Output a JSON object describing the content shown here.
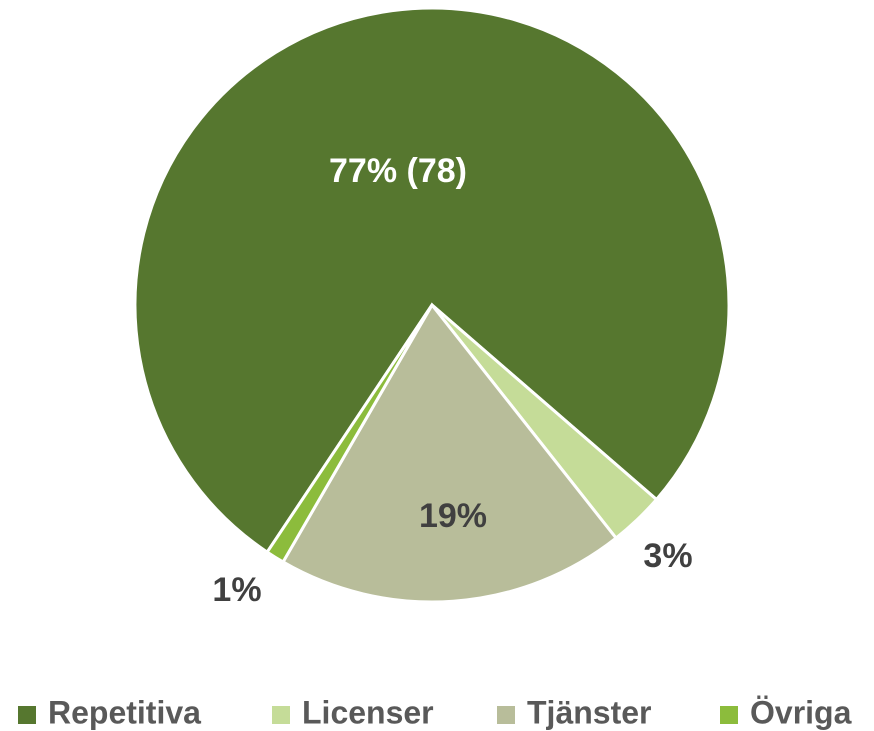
{
  "chart_data": {
    "type": "pie",
    "categories": [
      "Repetitiva",
      "Licenser",
      "Tjänster",
      "Övriga"
    ],
    "values": [
      77,
      3,
      19,
      1
    ],
    "value_labels": [
      "77% (78)",
      "3%",
      "19%",
      "1%"
    ],
    "colors": [
      "#56772f",
      "#c5dc98",
      "#b8bd9a",
      "#8cbc3c"
    ],
    "legend": "bottom"
  }
}
